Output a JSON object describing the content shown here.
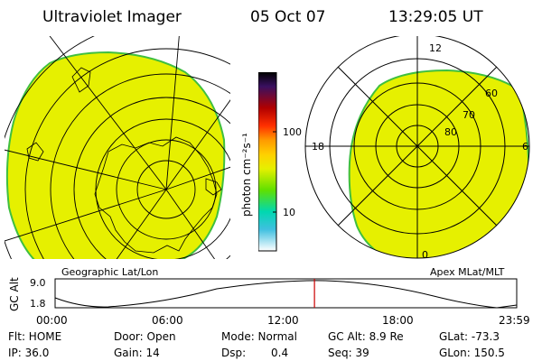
{
  "header": {
    "instrument": "Ultraviolet Imager",
    "date": "05 Oct 07",
    "time": "13:29:05 UT"
  },
  "panels": {
    "left_label": "Geographic Lat/Lon",
    "right_label": "Apex MLat/MLT",
    "mlt_labels": [
      "12",
      "18",
      "6",
      "0"
    ],
    "mlat_labels": [
      "60",
      "70",
      "80"
    ]
  },
  "colorbar": {
    "unit_label": "photon cm⁻²s⁻¹",
    "tick_labels": [
      "100",
      "10"
    ]
  },
  "altitude_plot": {
    "ylabel": "GC Alt",
    "y_ticks": [
      "9.0",
      "1.8"
    ],
    "x_ticks": [
      "00:00",
      "06:00",
      "12:00",
      "18:00",
      "23:59"
    ],
    "marker_time_hours": 13.485
  },
  "status": {
    "flt": "Flt: HOME",
    "ip": "IP: 36.0",
    "door": "Door: Open",
    "gain": "Gain: 14",
    "mode": "Mode: Normal",
    "dsp_label": "Dsp:",
    "dsp_value": "0.4",
    "gc_alt": "GC Alt: 8.9 Re",
    "seq": "Seq: 39",
    "glat": "GLat: -73.3",
    "glon": "GLon: 150.5"
  },
  "colors": {
    "emission": "#e6f000",
    "emission_edge": "#3fbf3f",
    "marker": "#cc0000"
  }
}
